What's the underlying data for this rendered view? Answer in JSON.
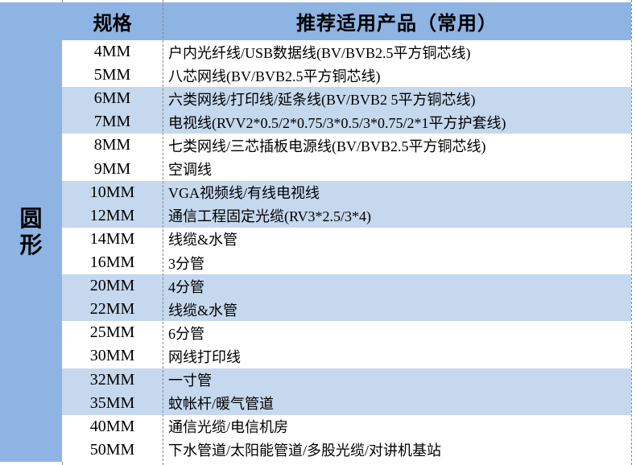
{
  "colors": {
    "primary_blue": "#8DB4E2",
    "alt_row_blue": "#C5D8EE",
    "row_white": "#FFFFFF",
    "divider_grey": "#8a8a8a",
    "text_black": "#000000"
  },
  "sidebar": {
    "label": "圆形"
  },
  "header": {
    "spec_label": "规格",
    "product_label": "推荐适用产品（常用）"
  },
  "rows": [
    {
      "size": "4MM",
      "product": "户内光纤线/USB数据线(BV/BVB2.5平方铜芯线)"
    },
    {
      "size": "5MM",
      "product": "八芯网线(BV/BVB2.5平方铜芯线)"
    },
    {
      "size": "6MM",
      "product": "六类网线/打印线/延条线(BV/BVB2 5平方铜芯线)"
    },
    {
      "size": "7MM",
      "product": "电视线(RVV2*0.5/2*0.75/3*0.5/3*0.75/2*1平方护套线)"
    },
    {
      "size": "8MM",
      "product": "七类网线/三芯插板电源线(BV/BVB2.5平方铜芯线)"
    },
    {
      "size": "9MM",
      "product": "空调线"
    },
    {
      "size": "10MM",
      "product": "VGA视频线/有线电视线"
    },
    {
      "size": "12MM",
      "product": "通信工程固定光缆(RV3*2.5/3*4)"
    },
    {
      "size": "14MM",
      "product": "线缆&水管"
    },
    {
      "size": "16MM",
      "product": "3分管"
    },
    {
      "size": "20MM",
      "product": "4分管"
    },
    {
      "size": "22MM",
      "product": "线缆&水管"
    },
    {
      "size": "25MM",
      "product": "6分管"
    },
    {
      "size": "30MM",
      "product": "网线打印线"
    },
    {
      "size": "32MM",
      "product": "一寸管"
    },
    {
      "size": "35MM",
      "product": "蚊帐杆/暖气管道"
    },
    {
      "size": "40MM",
      "product": "通信光缆/电信机房"
    },
    {
      "size": "50MM",
      "product": "下水管道/太阳能管道/多股光缆/对讲机基站"
    }
  ]
}
